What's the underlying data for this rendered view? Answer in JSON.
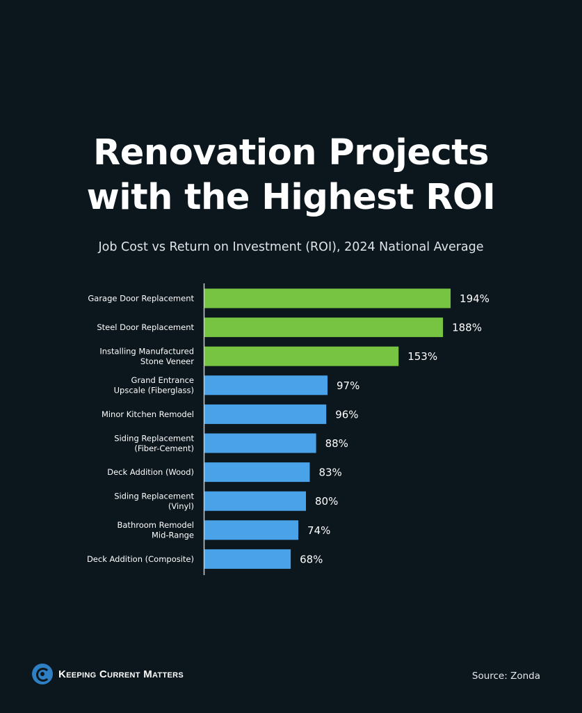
{
  "header": {
    "title_line1": "Renovation Projects",
    "title_line2": "with the Highest ROI",
    "subtitle": "Job Cost vs Return on Investment (ROI), 2024 National Average"
  },
  "chart_data": {
    "type": "bar",
    "orientation": "horizontal",
    "title": "Renovation Projects with the Highest ROI",
    "subtitle": "Job Cost vs Return on Investment (ROI), 2024 National Average",
    "categories": [
      [
        "Garage Door Replacement"
      ],
      [
        "Steel Door Replacement"
      ],
      [
        "Installing Manufactured",
        "Stone Veneer"
      ],
      [
        "Grand Entrance",
        "Upscale (Fiberglass)"
      ],
      [
        "Minor Kitchen Remodel"
      ],
      [
        "Siding Replacement",
        "(Fiber-Cement)"
      ],
      [
        "Deck Addition (Wood)"
      ],
      [
        "Siding Replacement",
        "(Vinyl)"
      ],
      [
        "Bathroom Remodel",
        "Mid-Range"
      ],
      [
        "Deck Addition (Composite)"
      ]
    ],
    "values": [
      194,
      188,
      153,
      97,
      96,
      88,
      83,
      80,
      74,
      68
    ],
    "value_labels": [
      "194%",
      "188%",
      "153%",
      "97%",
      "96%",
      "88%",
      "83%",
      "80%",
      "74%",
      "68%"
    ],
    "bar_colors": [
      "#76c442",
      "#76c442",
      "#76c442",
      "#4aa3e8",
      "#4aa3e8",
      "#4aa3e8",
      "#4aa3e8",
      "#4aa3e8",
      "#4aa3e8",
      "#4aa3e8"
    ],
    "xlim": [
      0,
      200
    ],
    "grid": false,
    "legend": "none"
  },
  "footer": {
    "logo_text": "Keeping Current Matters",
    "source": "Source: Zonda"
  }
}
